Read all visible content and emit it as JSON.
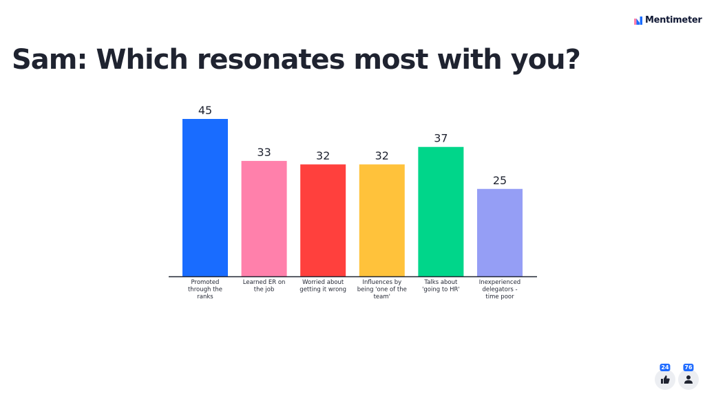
{
  "brand": {
    "name": "Mentimeter"
  },
  "title": "Sam: Which resonates most with you?",
  "chart_data": {
    "type": "bar",
    "title": "Sam: Which resonates most with you?",
    "categories": [
      [
        "Promoted",
        "through the",
        "ranks"
      ],
      [
        "Learned ER on",
        "the job"
      ],
      [
        "Worried about",
        "getting it wrong"
      ],
      [
        "Influences by",
        "being 'one of the",
        "team'"
      ],
      [
        "Talks about",
        "'going to HR'"
      ],
      [
        "Inexperienced",
        "delegators -",
        "time poor"
      ]
    ],
    "values": [
      45,
      33,
      32,
      32,
      37,
      25
    ],
    "colors": [
      "#196cff",
      "#ff80ab",
      "#ff403d",
      "#ffc23b",
      "#00d68a",
      "#959ef5"
    ],
    "xlabel": "",
    "ylabel": "",
    "ylim": [
      0,
      45
    ],
    "grid": false
  },
  "footer": {
    "likes_count": "24",
    "participants_count": "76"
  }
}
